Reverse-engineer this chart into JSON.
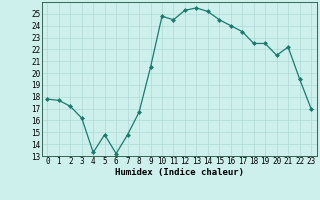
{
  "x": [
    0,
    1,
    2,
    3,
    4,
    5,
    6,
    7,
    8,
    9,
    10,
    11,
    12,
    13,
    14,
    15,
    16,
    17,
    18,
    19,
    20,
    21,
    22,
    23
  ],
  "y": [
    17.8,
    17.7,
    17.2,
    16.2,
    13.3,
    14.8,
    13.2,
    14.8,
    16.7,
    20.5,
    24.8,
    24.5,
    25.3,
    25.5,
    25.2,
    24.5,
    24.0,
    23.5,
    22.5,
    22.5,
    21.5,
    22.2,
    19.5,
    17.0
  ],
  "line_color": "#1a7a6e",
  "marker": "D",
  "marker_size": 2.0,
  "bg_color": "#cef0ec",
  "grid_color": "#aed8d4",
  "xlabel": "Humidex (Indice chaleur)",
  "ylim": [
    13,
    26
  ],
  "xlim": [
    -0.5,
    23.5
  ],
  "yticks": [
    13,
    14,
    15,
    16,
    17,
    18,
    19,
    20,
    21,
    22,
    23,
    24,
    25
  ],
  "xticks": [
    0,
    1,
    2,
    3,
    4,
    5,
    6,
    7,
    8,
    9,
    10,
    11,
    12,
    13,
    14,
    15,
    16,
    17,
    18,
    19,
    20,
    21,
    22,
    23
  ],
  "tick_fontsize": 5.5,
  "label_fontsize": 6.5,
  "linewidth": 0.9
}
